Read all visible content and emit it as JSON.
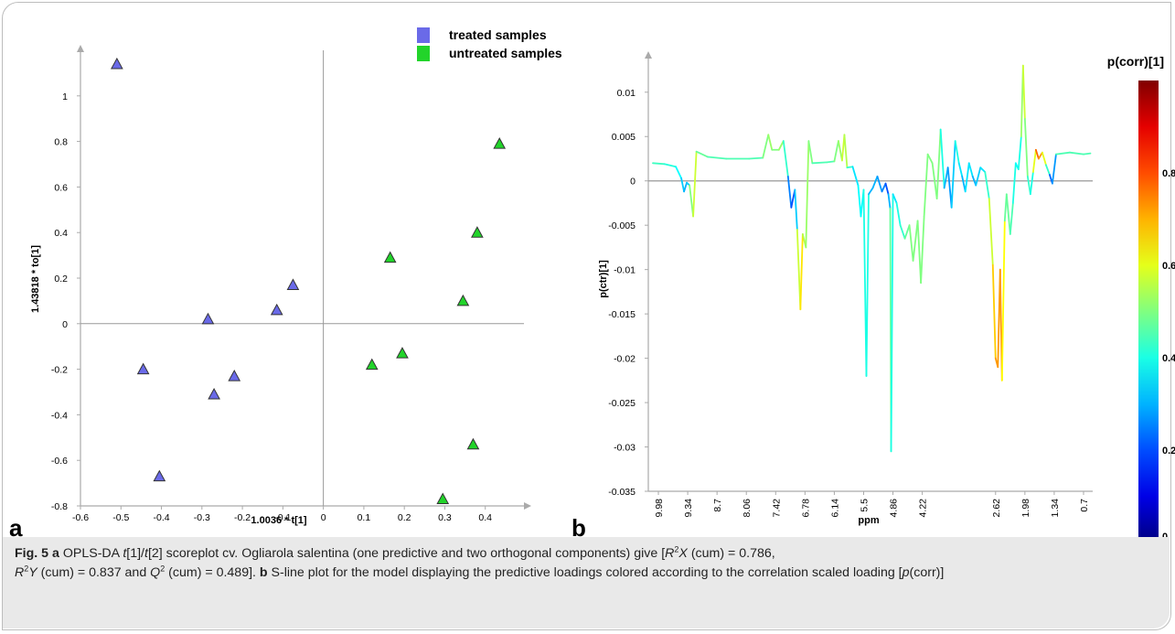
{
  "chart_data": [
    {
      "panel_label": "a",
      "type": "scatter",
      "xlabel": "1.0036 * t[1]",
      "ylabel": "1.43818 * to[1]",
      "xlim": [
        -0.6,
        0.5
      ],
      "ylim": [
        -0.8,
        1.2
      ],
      "x_ticks": [
        "-0.6",
        "-0.5",
        "-0.4",
        "-0.3",
        "-0.2",
        "-0.1",
        "0",
        "0.1",
        "0.2",
        "0.3",
        "0.4"
      ],
      "y_ticks": [
        "1",
        "0.8",
        "0.6",
        "0.4",
        "0.2",
        "0",
        "-0.2",
        "-0.4",
        "-0.6",
        "-0.8"
      ],
      "series": [
        {
          "name": "treated samples",
          "color": "#6a6ae8",
          "points": [
            {
              "x": -0.51,
              "y": 1.14
            },
            {
              "x": -0.075,
              "y": 0.17
            },
            {
              "x": -0.115,
              "y": 0.06
            },
            {
              "x": -0.285,
              "y": 0.02
            },
            {
              "x": -0.445,
              "y": -0.2
            },
            {
              "x": -0.22,
              "y": -0.23
            },
            {
              "x": -0.27,
              "y": -0.31
            },
            {
              "x": -0.405,
              "y": -0.67
            }
          ]
        },
        {
          "name": "untreated samples",
          "color": "#22d42a",
          "points": [
            {
              "x": 0.435,
              "y": 0.79
            },
            {
              "x": 0.38,
              "y": 0.4
            },
            {
              "x": 0.165,
              "y": 0.29
            },
            {
              "x": 0.345,
              "y": 0.1
            },
            {
              "x": 0.195,
              "y": -0.13
            },
            {
              "x": 0.12,
              "y": -0.18
            },
            {
              "x": 0.37,
              "y": -0.53
            },
            {
              "x": 0.295,
              "y": -0.77
            }
          ]
        }
      ],
      "legend_position": "top"
    },
    {
      "panel_label": "b",
      "type": "line",
      "xlabel": "ppm",
      "ylabel": "p(ctr)[1]",
      "x_reversed": true,
      "xlim": [
        10.2,
        0.5
      ],
      "ylim": [
        -0.035,
        0.014
      ],
      "x_ticks": [
        "9.98",
        "9.34",
        "8.7",
        "8.06",
        "7.42",
        "6.78",
        "6.14",
        "5.5",
        "4.86",
        "4.22",
        "2.62",
        "1.98",
        "1.34",
        "0.7"
      ],
      "y_ticks": [
        "0.01",
        "0.005",
        "0",
        "-0.005",
        "-0.01",
        "-0.015",
        "-0.02",
        "-0.025",
        "-0.03",
        "-0.035"
      ],
      "series": [
        {
          "points": [
            {
              "x": 10.1,
              "y": 0.002,
              "c": 0.45
            },
            {
              "x": 9.85,
              "y": 0.0019,
              "c": 0.42
            },
            {
              "x": 9.6,
              "y": 0.0016,
              "c": 0.4
            },
            {
              "x": 9.48,
              "y": 0.0003,
              "c": 0.35
            },
            {
              "x": 9.42,
              "y": -0.0012,
              "c": 0.3
            },
            {
              "x": 9.36,
              "y": -0.0002,
              "c": 0.3
            },
            {
              "x": 9.3,
              "y": -0.0005,
              "c": 0.35
            },
            {
              "x": 9.22,
              "y": -0.004,
              "c": 0.65
            },
            {
              "x": 9.15,
              "y": 0.0033,
              "c": 0.5
            },
            {
              "x": 8.9,
              "y": 0.0027,
              "c": 0.45
            },
            {
              "x": 8.5,
              "y": 0.0025,
              "c": 0.45
            },
            {
              "x": 8.0,
              "y": 0.0025,
              "c": 0.45
            },
            {
              "x": 7.7,
              "y": 0.0026,
              "c": 0.45
            },
            {
              "x": 7.58,
              "y": 0.0052,
              "c": 0.55
            },
            {
              "x": 7.5,
              "y": 0.0035,
              "c": 0.5
            },
            {
              "x": 7.35,
              "y": 0.0035,
              "c": 0.5
            },
            {
              "x": 7.25,
              "y": 0.0045,
              "c": 0.55
            },
            {
              "x": 7.15,
              "y": 0.0005,
              "c": 0.3
            },
            {
              "x": 7.08,
              "y": -0.003,
              "c": 0.2
            },
            {
              "x": 7.0,
              "y": -0.001,
              "c": 0.2
            },
            {
              "x": 6.95,
              "y": -0.0055,
              "c": 0.45
            },
            {
              "x": 6.88,
              "y": -0.0145,
              "c": 0.7
            },
            {
              "x": 6.83,
              "y": -0.006,
              "c": 0.6
            },
            {
              "x": 6.76,
              "y": -0.0075,
              "c": 0.5
            },
            {
              "x": 6.7,
              "y": 0.0045,
              "c": 0.55
            },
            {
              "x": 6.62,
              "y": 0.002,
              "c": 0.45
            },
            {
              "x": 6.3,
              "y": 0.0021,
              "c": 0.45
            },
            {
              "x": 6.14,
              "y": 0.0022,
              "c": 0.45
            },
            {
              "x": 6.05,
              "y": 0.0045,
              "c": 0.55
            },
            {
              "x": 5.97,
              "y": 0.0023,
              "c": 0.5
            },
            {
              "x": 5.92,
              "y": 0.0052,
              "c": 0.65
            },
            {
              "x": 5.86,
              "y": 0.0015,
              "c": 0.45
            },
            {
              "x": 5.74,
              "y": 0.0016,
              "c": 0.4
            },
            {
              "x": 5.62,
              "y": -0.0005,
              "c": 0.3
            },
            {
              "x": 5.56,
              "y": -0.004,
              "c": 0.45
            },
            {
              "x": 5.5,
              "y": -0.001,
              "c": 0.3
            },
            {
              "x": 5.44,
              "y": -0.022,
              "c": 0.5
            },
            {
              "x": 5.39,
              "y": -0.0015,
              "c": 0.3
            },
            {
              "x": 5.3,
              "y": -0.0008,
              "c": 0.3
            },
            {
              "x": 5.2,
              "y": 0.0005,
              "c": 0.3
            },
            {
              "x": 5.1,
              "y": -0.0012,
              "c": 0.25
            },
            {
              "x": 5.02,
              "y": -0.0003,
              "c": 0.25
            },
            {
              "x": 4.96,
              "y": -0.0015,
              "c": 0.15
            },
            {
              "x": 4.92,
              "y": -0.0031,
              "c": 0.45
            },
            {
              "x": 4.9,
              "y": -0.0305,
              "c": 0.5
            },
            {
              "x": 4.86,
              "y": -0.0015,
              "c": 0.3
            },
            {
              "x": 4.78,
              "y": -0.0025,
              "c": 0.4
            },
            {
              "x": 4.7,
              "y": -0.005,
              "c": 0.4
            },
            {
              "x": 4.6,
              "y": -0.0065,
              "c": 0.45
            },
            {
              "x": 4.5,
              "y": -0.005,
              "c": 0.5
            },
            {
              "x": 4.42,
              "y": -0.009,
              "c": 0.5
            },
            {
              "x": 4.32,
              "y": -0.0045,
              "c": 0.5
            },
            {
              "x": 4.25,
              "y": -0.0115,
              "c": 0.5
            },
            {
              "x": 4.18,
              "y": -0.004,
              "c": 0.5
            },
            {
              "x": 4.1,
              "y": 0.003,
              "c": 0.5
            },
            {
              "x": 4.0,
              "y": 0.002,
              "c": 0.5
            },
            {
              "x": 3.9,
              "y": -0.002,
              "c": 0.5
            },
            {
              "x": 3.82,
              "y": 0.0058,
              "c": 0.5
            },
            {
              "x": 3.74,
              "y": -0.0008,
              "c": 0.3
            },
            {
              "x": 3.66,
              "y": 0.0015,
              "c": 0.3
            },
            {
              "x": 3.58,
              "y": -0.003,
              "c": 0.25
            },
            {
              "x": 3.5,
              "y": 0.0045,
              "c": 0.4
            },
            {
              "x": 3.42,
              "y": 0.002,
              "c": 0.4
            },
            {
              "x": 3.35,
              "y": 0.0005,
              "c": 0.3
            },
            {
              "x": 3.28,
              "y": -0.0012,
              "c": 0.3
            },
            {
              "x": 3.2,
              "y": 0.002,
              "c": 0.4
            },
            {
              "x": 3.12,
              "y": 0.0005,
              "c": 0.3
            },
            {
              "x": 3.05,
              "y": -0.0005,
              "c": 0.3
            },
            {
              "x": 2.95,
              "y": 0.0015,
              "c": 0.35
            },
            {
              "x": 2.85,
              "y": 0.001,
              "c": 0.35
            },
            {
              "x": 2.76,
              "y": -0.002,
              "c": 0.5
            },
            {
              "x": 2.68,
              "y": -0.0095,
              "c": 0.65
            },
            {
              "x": 2.62,
              "y": -0.02,
              "c": 0.7
            },
            {
              "x": 2.57,
              "y": -0.021,
              "c": 0.75
            },
            {
              "x": 2.52,
              "y": -0.01,
              "c": 0.7
            },
            {
              "x": 2.48,
              "y": -0.0225,
              "c": 0.75
            },
            {
              "x": 2.42,
              "y": -0.0045,
              "c": 0.5
            },
            {
              "x": 2.38,
              "y": -0.0015,
              "c": 0.45
            },
            {
              "x": 2.3,
              "y": -0.006,
              "c": 0.5
            },
            {
              "x": 2.24,
              "y": -0.0025,
              "c": 0.4
            },
            {
              "x": 2.18,
              "y": 0.002,
              "c": 0.4
            },
            {
              "x": 2.12,
              "y": 0.0013,
              "c": 0.35
            },
            {
              "x": 2.06,
              "y": 0.005,
              "c": 0.45
            },
            {
              "x": 2.02,
              "y": 0.013,
              "c": 0.6
            },
            {
              "x": 1.98,
              "y": 0.007,
              "c": 0.55
            },
            {
              "x": 1.92,
              "y": 0.0005,
              "c": 0.45
            },
            {
              "x": 1.86,
              "y": -0.0015,
              "c": 0.4
            },
            {
              "x": 1.8,
              "y": 0.001,
              "c": 0.4
            },
            {
              "x": 1.74,
              "y": 0.0035,
              "c": 0.8
            },
            {
              "x": 1.68,
              "y": 0.0025,
              "c": 0.75
            },
            {
              "x": 1.6,
              "y": 0.0032,
              "c": 0.7
            },
            {
              "x": 1.52,
              "y": 0.0018,
              "c": 0.5
            },
            {
              "x": 1.44,
              "y": 0.0007,
              "c": 0.35
            },
            {
              "x": 1.38,
              "y": -0.0003,
              "c": 0.1
            },
            {
              "x": 1.3,
              "y": 0.003,
              "c": 0.45
            },
            {
              "x": 1.0,
              "y": 0.0032,
              "c": 0.45
            },
            {
              "x": 0.7,
              "y": 0.003,
              "c": 0.45
            },
            {
              "x": 0.55,
              "y": 0.0031,
              "c": 0.45
            }
          ]
        }
      ],
      "colorbar": {
        "title": "p(corr)[1]",
        "ticks": [
          "0.8",
          "0.6",
          "0.4",
          "0.2",
          "0"
        ],
        "range": [
          0,
          1
        ]
      }
    }
  ],
  "caption": {
    "fig_label": "Fig. 5",
    "a_label": "a",
    "b_label": "b",
    "line1": "OPLS-DA",
    "t1": "t",
    "s1": "[1]/",
    "t2": "t",
    "s2": "[2] scoreplot cv. Ogliarola salentina (one predictive and two orthogonal components) give [",
    "r2x_R": "R",
    "r2x_sup": "2",
    "r2x_X": "X",
    "r2x_val": " (cum) = 0.786,",
    "r2y_R": "R",
    "r2y_sup": "2",
    "r2y_Y": "Y",
    "r2y_val": " (cum) = 0.837 and ",
    "q2_Q": "Q",
    "q2_sup": "2",
    "q2_val": " (cum) = 0.489].",
    "b_text": " S-line plot for the model displaying the predictive loadings colored according to the correlation scaled loading [",
    "pcorr_p": "p",
    "pcorr_rest": "(corr)]"
  }
}
